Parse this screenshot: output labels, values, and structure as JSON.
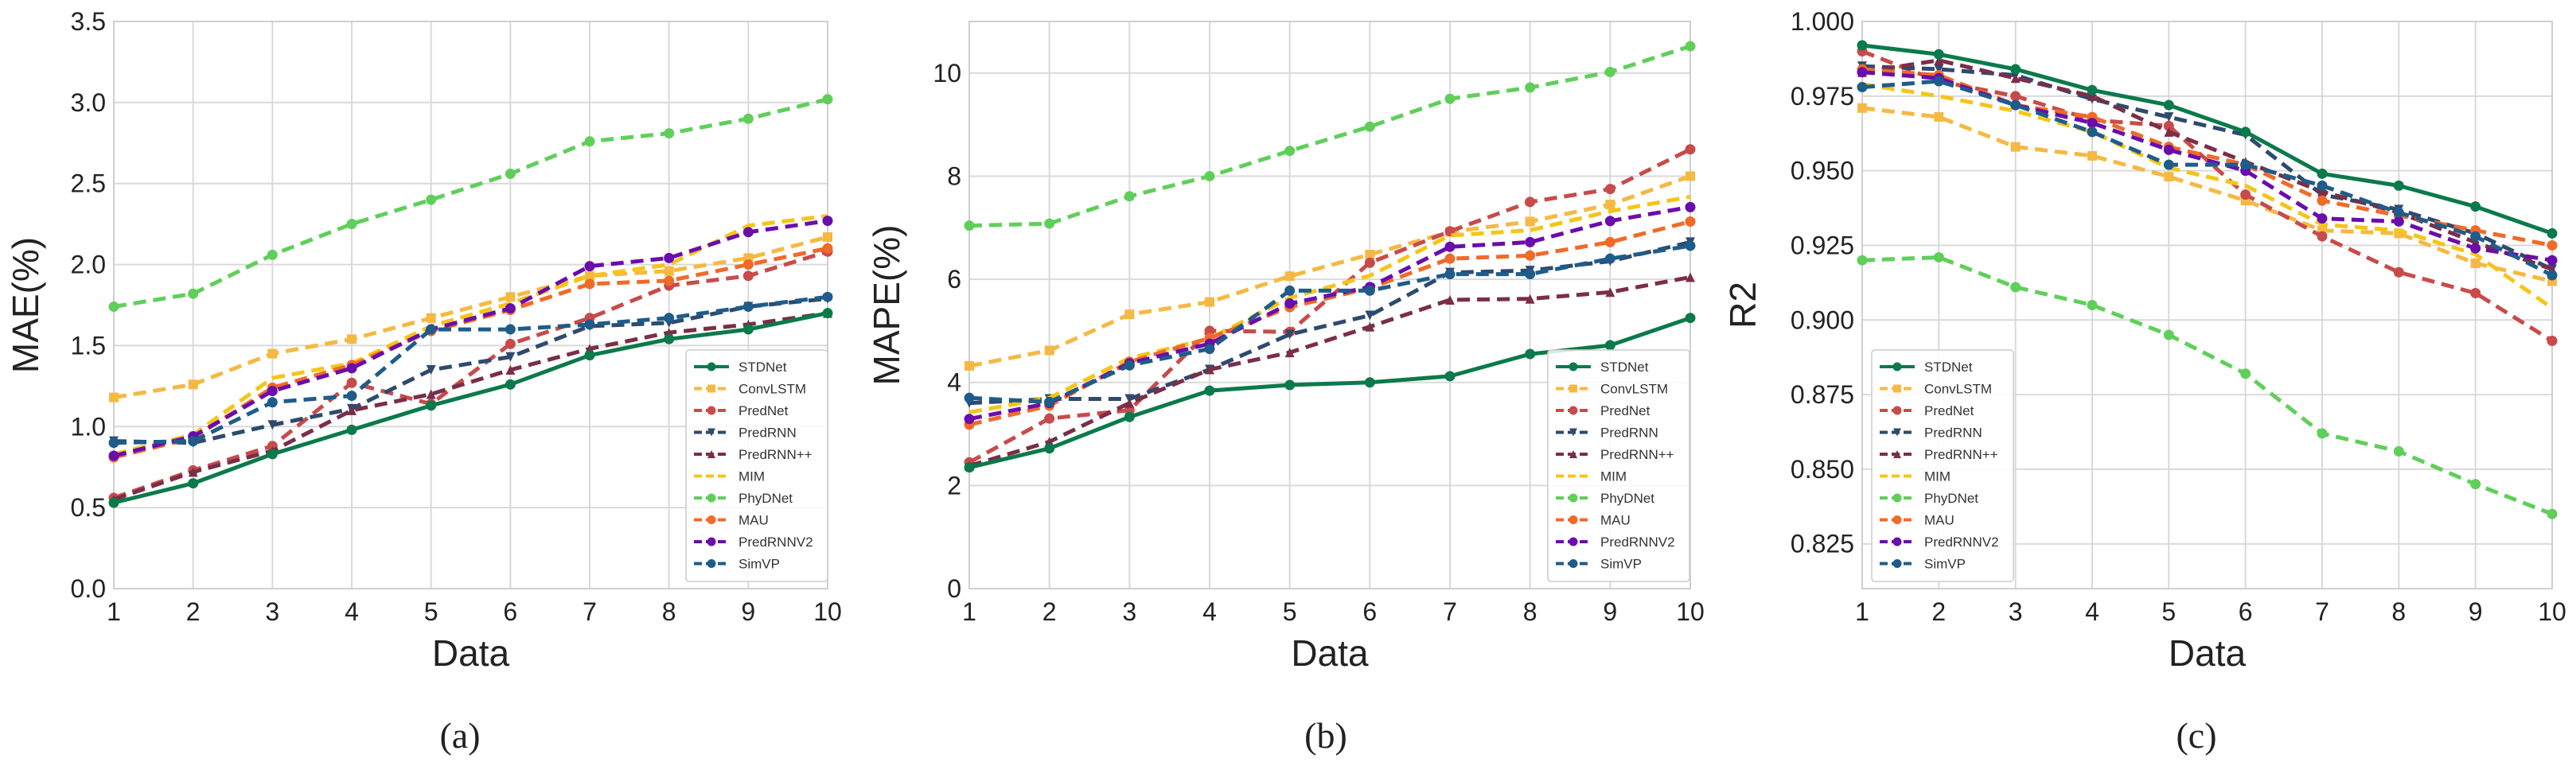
{
  "figure": {
    "captions": [
      "(a)",
      "(b)",
      "(c)"
    ]
  },
  "series_styles": [
    {
      "name": "STDNet",
      "color": "#0b7a4b",
      "dash": "solid",
      "marker": "circle"
    },
    {
      "name": "ConvLSTM",
      "color": "#f5b942",
      "dash": "dashed",
      "marker": "square"
    },
    {
      "name": "PredNet",
      "color": "#c84b4b",
      "dash": "dashed",
      "marker": "circle"
    },
    {
      "name": "PredRNN",
      "color": "#2e4a6e",
      "dash": "dashed",
      "marker": "triangle-down"
    },
    {
      "name": "PredRNN++",
      "color": "#7a2e48",
      "dash": "dashed",
      "marker": "triangle-up"
    },
    {
      "name": "MIM",
      "color": "#f5c518",
      "dash": "dashed",
      "marker": "none"
    },
    {
      "name": "PhyDNet",
      "color": "#5fcf5a",
      "dash": "dashed",
      "marker": "circle"
    },
    {
      "name": "MAU",
      "color": "#f06a28",
      "dash": "dashed",
      "marker": "circle"
    },
    {
      "name": "PredRNNV2",
      "color": "#6a0dad",
      "dash": "dashed",
      "marker": "circle"
    },
    {
      "name": "SimVP",
      "color": "#1f5c8a",
      "dash": "dashed",
      "marker": "circle"
    }
  ],
  "chart_data": [
    {
      "type": "line",
      "caption": "(a)",
      "xlabel": "Data",
      "ylabel": "MAE(%)",
      "x": [
        1,
        2,
        3,
        4,
        5,
        6,
        7,
        8,
        9,
        10
      ],
      "xlim": [
        1,
        10
      ],
      "ylim": [
        0,
        3.5
      ],
      "yticks": [
        0.0,
        0.5,
        1.0,
        1.5,
        2.0,
        2.5,
        3.0,
        3.5
      ],
      "ytick_labels": [
        "0.0",
        "0.5",
        "1.0",
        "1.5",
        "2.0",
        "2.5",
        "3.0",
        "3.5"
      ],
      "grid": true,
      "legend_position": "bottom-right",
      "series": [
        {
          "name": "STDNet",
          "values": [
            0.53,
            0.65,
            0.83,
            0.98,
            1.13,
            1.26,
            1.44,
            1.54,
            1.6,
            1.7
          ]
        },
        {
          "name": "ConvLSTM",
          "values": [
            1.18,
            1.26,
            1.45,
            1.54,
            1.67,
            1.8,
            1.93,
            1.96,
            2.04,
            2.17
          ]
        },
        {
          "name": "PredNet",
          "values": [
            0.56,
            0.73,
            0.88,
            1.27,
            1.14,
            1.51,
            1.67,
            1.87,
            1.93,
            2.08
          ]
        },
        {
          "name": "PredRNN",
          "values": [
            0.91,
            0.9,
            1.01,
            1.11,
            1.35,
            1.43,
            1.62,
            1.64,
            1.74,
            1.79
          ]
        },
        {
          "name": "PredRNN++",
          "values": [
            0.55,
            0.72,
            0.85,
            1.1,
            1.2,
            1.35,
            1.48,
            1.58,
            1.63,
            1.7
          ]
        },
        {
          "name": "MIM",
          "values": [
            0.83,
            0.95,
            1.3,
            1.39,
            1.62,
            1.76,
            1.93,
            2.0,
            2.24,
            2.3
          ]
        },
        {
          "name": "PhyDNet",
          "values": [
            1.74,
            1.82,
            2.06,
            2.25,
            2.4,
            2.56,
            2.76,
            2.81,
            2.9,
            3.02
          ]
        },
        {
          "name": "MAU",
          "values": [
            0.81,
            0.93,
            1.24,
            1.38,
            1.59,
            1.72,
            1.88,
            1.9,
            2.0,
            2.1
          ]
        },
        {
          "name": "PredRNNV2",
          "values": [
            0.82,
            0.94,
            1.22,
            1.36,
            1.6,
            1.73,
            1.99,
            2.04,
            2.2,
            2.27
          ]
        },
        {
          "name": "SimVP",
          "values": [
            0.9,
            0.91,
            1.15,
            1.19,
            1.6,
            1.6,
            1.63,
            1.67,
            1.74,
            1.8
          ]
        }
      ]
    },
    {
      "type": "line",
      "caption": "(b)",
      "xlabel": "Data",
      "ylabel": "MAPE(%)",
      "x": [
        1,
        2,
        3,
        4,
        5,
        6,
        7,
        8,
        9,
        10
      ],
      "xlim": [
        1,
        10
      ],
      "ylim": [
        0,
        11
      ],
      "yticks": [
        0,
        2,
        4,
        6,
        8,
        10
      ],
      "ytick_labels": [
        "0",
        "2",
        "4",
        "6",
        "8",
        "10"
      ],
      "grid": true,
      "legend_position": "bottom-right",
      "series": [
        {
          "name": "STDNet",
          "values": [
            2.35,
            2.72,
            3.33,
            3.84,
            3.95,
            4.0,
            4.12,
            4.55,
            4.72,
            5.25
          ]
        },
        {
          "name": "ConvLSTM",
          "values": [
            4.32,
            4.62,
            5.32,
            5.56,
            6.06,
            6.48,
            6.92,
            7.12,
            7.45,
            8.0
          ]
        },
        {
          "name": "PredNet",
          "values": [
            2.45,
            3.3,
            3.46,
            5.0,
            4.98,
            6.32,
            6.93,
            7.5,
            7.75,
            8.52
          ]
        },
        {
          "name": "PredRNN",
          "values": [
            3.6,
            3.68,
            3.68,
            4.25,
            4.93,
            5.3,
            6.13,
            6.17,
            6.35,
            6.72
          ]
        },
        {
          "name": "PredRNN++",
          "values": [
            2.38,
            2.85,
            3.6,
            4.25,
            4.58,
            5.08,
            5.6,
            5.62,
            5.75,
            6.04
          ]
        },
        {
          "name": "MIM",
          "values": [
            3.42,
            3.7,
            4.47,
            4.85,
            5.64,
            6.07,
            6.85,
            6.95,
            7.32,
            7.6
          ]
        },
        {
          "name": "PhyDNet",
          "values": [
            7.04,
            7.08,
            7.61,
            8.0,
            8.49,
            8.96,
            9.5,
            9.72,
            10.02,
            10.52
          ]
        },
        {
          "name": "MAU",
          "values": [
            3.18,
            3.55,
            4.4,
            4.86,
            5.46,
            5.83,
            6.4,
            6.46,
            6.72,
            7.12
          ]
        },
        {
          "name": "PredRNNV2",
          "values": [
            3.29,
            3.6,
            4.37,
            4.75,
            5.53,
            5.85,
            6.63,
            6.72,
            7.13,
            7.4
          ]
        },
        {
          "name": "SimVP",
          "values": [
            3.7,
            3.62,
            4.33,
            4.65,
            5.78,
            5.78,
            6.1,
            6.1,
            6.4,
            6.65
          ]
        }
      ]
    },
    {
      "type": "line",
      "caption": "(c)",
      "xlabel": "Data",
      "ylabel": "R2",
      "x": [
        1,
        2,
        3,
        4,
        5,
        6,
        7,
        8,
        9,
        10
      ],
      "xlim": [
        1,
        10
      ],
      "ylim": [
        0.81,
        1.0
      ],
      "yticks": [
        0.825,
        0.85,
        0.875,
        0.9,
        0.925,
        0.95,
        0.975,
        1.0
      ],
      "ytick_labels": [
        "0.825",
        "0.850",
        "0.875",
        "0.900",
        "0.925",
        "0.950",
        "0.975",
        "1.000"
      ],
      "grid": true,
      "legend_position": "bottom-left",
      "series": [
        {
          "name": "STDNet",
          "values": [
            0.992,
            0.989,
            0.984,
            0.977,
            0.972,
            0.963,
            0.949,
            0.945,
            0.938,
            0.929
          ]
        },
        {
          "name": "ConvLSTM",
          "values": [
            0.971,
            0.968,
            0.958,
            0.955,
            0.948,
            0.94,
            0.93,
            0.929,
            0.919,
            0.913
          ]
        },
        {
          "name": "PredNet",
          "values": [
            0.99,
            0.98,
            0.975,
            0.967,
            0.965,
            0.942,
            0.928,
            0.916,
            0.909,
            0.893
          ]
        },
        {
          "name": "PredRNN",
          "values": [
            0.985,
            0.984,
            0.982,
            0.974,
            0.968,
            0.962,
            0.942,
            0.937,
            0.929,
            0.917
          ]
        },
        {
          "name": "PredRNN++",
          "values": [
            0.983,
            0.987,
            0.981,
            0.975,
            0.963,
            0.953,
            0.943,
            0.936,
            0.926,
            0.917
          ]
        },
        {
          "name": "MIM",
          "values": [
            0.979,
            0.975,
            0.97,
            0.963,
            0.951,
            0.945,
            0.932,
            0.93,
            0.922,
            0.904
          ]
        },
        {
          "name": "PhyDNet",
          "values": [
            0.92,
            0.921,
            0.911,
            0.905,
            0.895,
            0.882,
            0.862,
            0.856,
            0.845,
            0.835
          ]
        },
        {
          "name": "MAU",
          "values": [
            0.984,
            0.982,
            0.972,
            0.968,
            0.958,
            0.952,
            0.94,
            0.935,
            0.93,
            0.925
          ]
        },
        {
          "name": "PredRNNV2",
          "values": [
            0.983,
            0.981,
            0.972,
            0.966,
            0.957,
            0.95,
            0.934,
            0.933,
            0.924,
            0.92
          ]
        },
        {
          "name": "SimVP",
          "values": [
            0.978,
            0.98,
            0.972,
            0.963,
            0.952,
            0.952,
            0.945,
            0.936,
            0.928,
            0.915
          ]
        }
      ]
    }
  ]
}
